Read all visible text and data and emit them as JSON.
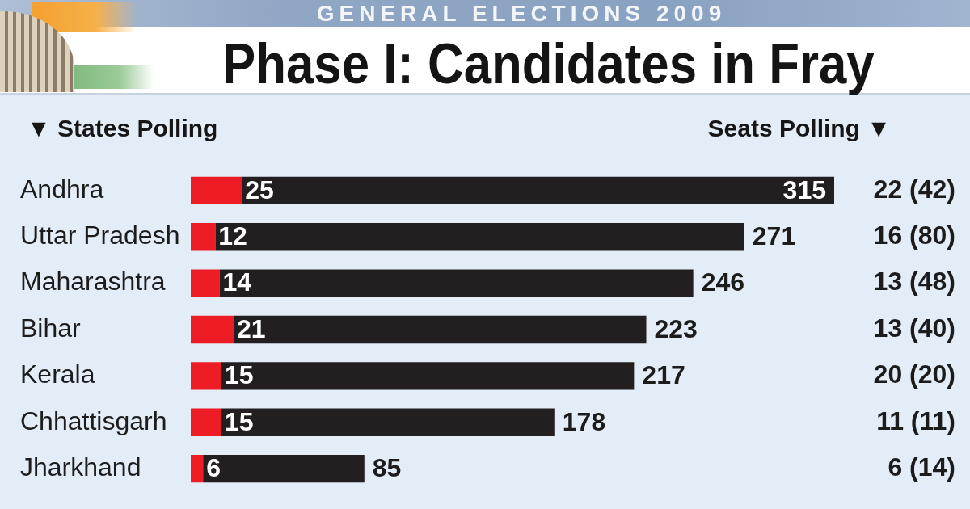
{
  "chart_data": {
    "type": "bar",
    "orientation": "horizontal",
    "stacked": true,
    "subtitle": "GENERAL ELECTIONS 2009",
    "title": "Phase I: Candidates in Fray",
    "ylabel": "▼ States Polling",
    "y2label": "Seats Polling ▼",
    "categories": [
      "Andhra",
      "Uttar Pradesh",
      "Maharashtra",
      "Bihar",
      "Kerala",
      "Chhattisgarh",
      "Jharkhand"
    ],
    "y2_categories": [
      "22 (42)",
      "16 (80)",
      "13 (48)",
      "13 (40)",
      "20 (20)",
      "11 (11)",
      "6 (14)"
    ],
    "series": [
      {
        "color": "#ee1c25",
        "values": [
          25,
          12,
          14,
          21,
          15,
          15,
          6
        ],
        "value_labels": [
          "25",
          "12",
          "14",
          "21",
          "15",
          "15",
          "6"
        ]
      },
      {
        "color": "#231f20",
        "values": [
          290,
          259,
          232,
          202,
          202,
          163,
          79
        ]
      }
    ],
    "totals": [
      "315",
      "271",
      "246",
      "223",
      "217",
      "178",
      "85"
    ],
    "tick_labels": "y"
  }
}
